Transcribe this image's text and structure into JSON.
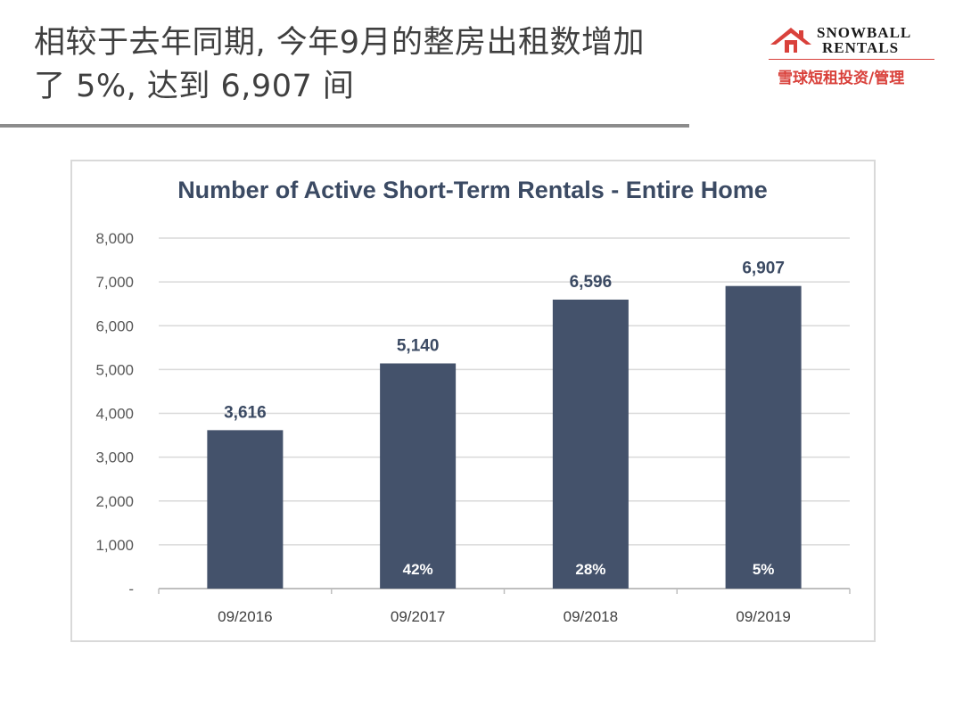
{
  "headline": {
    "line1": "相较于去年同期, 今年9月的整房出租数增加",
    "line2": "了 5%, 达到 6,907 间"
  },
  "logo": {
    "name_line1": "SNOWBALL",
    "name_line2": "RENTALS",
    "tagline": "雪球短租投资/管理",
    "icon": "house-icon",
    "brand_color": "#d9413b"
  },
  "chart_data": {
    "type": "bar",
    "title": "Number of Active Short-Term Rentals - Entire Home",
    "categories": [
      "09/2016",
      "09/2017",
      "09/2018",
      "09/2019"
    ],
    "values": [
      3616,
      5140,
      6596,
      6907
    ],
    "value_labels": [
      "3,616",
      "5,140",
      "6,596",
      "6,907"
    ],
    "growth_labels": [
      "",
      "42%",
      "28%",
      "5%"
    ],
    "ylim": [
      0,
      8000
    ],
    "yticks": [
      0,
      1000,
      2000,
      3000,
      4000,
      5000,
      6000,
      7000,
      8000
    ],
    "ytick_labels": [
      "-",
      "1,000",
      "2,000",
      "3,000",
      "4,000",
      "5,000",
      "6,000",
      "7,000",
      "8,000"
    ],
    "xlabel": "",
    "ylabel": "",
    "grid": true,
    "legend": "none",
    "bar_color": "#44526b"
  }
}
